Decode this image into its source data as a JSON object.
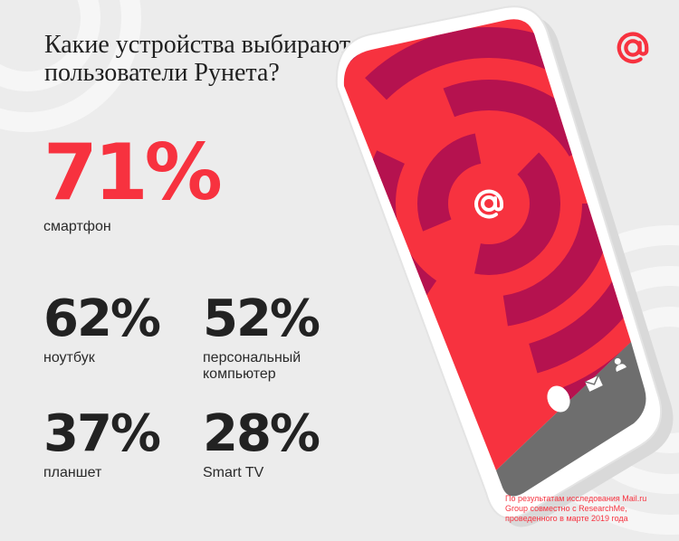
{
  "title": "Какие устройства выбирают пользователи Рунета?",
  "logo": {
    "icon": "at-sign-icon",
    "color": "#f7323f"
  },
  "colors": {
    "accent": "#f7323f",
    "dark_red": "#b5124f",
    "text": "#222222",
    "background": "#ececec",
    "phone_bar": "#6e6e6e"
  },
  "stats": [
    {
      "value": "71%",
      "label": "смартфон"
    },
    {
      "value": "62%",
      "label": "ноутбук"
    },
    {
      "value": "52%",
      "label": "персональный компьютер"
    },
    {
      "value": "37%",
      "label": "планшет"
    },
    {
      "value": "28%",
      "label": "Smart TV"
    }
  ],
  "footnote": "По результатам исследования Mail.ru Group совместно с ResearchMe, проведенного в марте 2019 года",
  "phone": {
    "screen_icon": "at-sign-icon",
    "nav_icons": [
      "home-button-icon",
      "mail-icon",
      "user-icon"
    ]
  }
}
